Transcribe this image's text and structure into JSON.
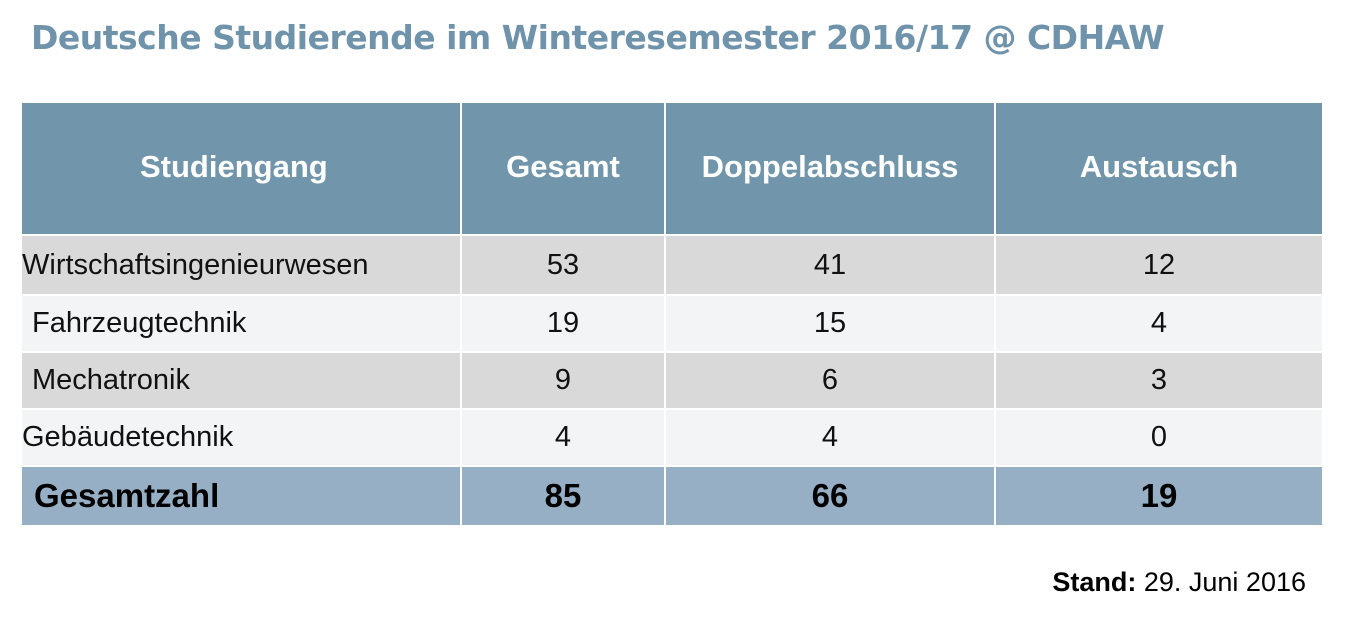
{
  "title": "Deutsche Studierende im Winteresemester 2016/17 @ CDHAW",
  "table": {
    "headers": [
      "Studiengang",
      "Gesamt",
      "Doppelabschluss",
      "Austausch"
    ],
    "rows": [
      {
        "name": "Wirtschaftsingenieurwesen",
        "gesamt": "53",
        "doppel": "41",
        "austausch": "12"
      },
      {
        "name": "Fahrzeugtechnik",
        "gesamt": "19",
        "doppel": "15",
        "austausch": "4"
      },
      {
        "name": "Mechatronik",
        "gesamt": "9",
        "doppel": "6",
        "austausch": "3"
      },
      {
        "name": "Gebäudetechnik",
        "gesamt": "4",
        "doppel": "4",
        "austausch": "0"
      }
    ],
    "total": {
      "name": "Gesamtzahl",
      "gesamt": "85",
      "doppel": "66",
      "austausch": "19"
    }
  },
  "footer": {
    "stand_label": "Stand:",
    "stand_date": "29. Juni 2016"
  },
  "colors": {
    "title": "#6f93ab",
    "header_bg": "#7196ab",
    "total_bg": "#97afc4"
  }
}
